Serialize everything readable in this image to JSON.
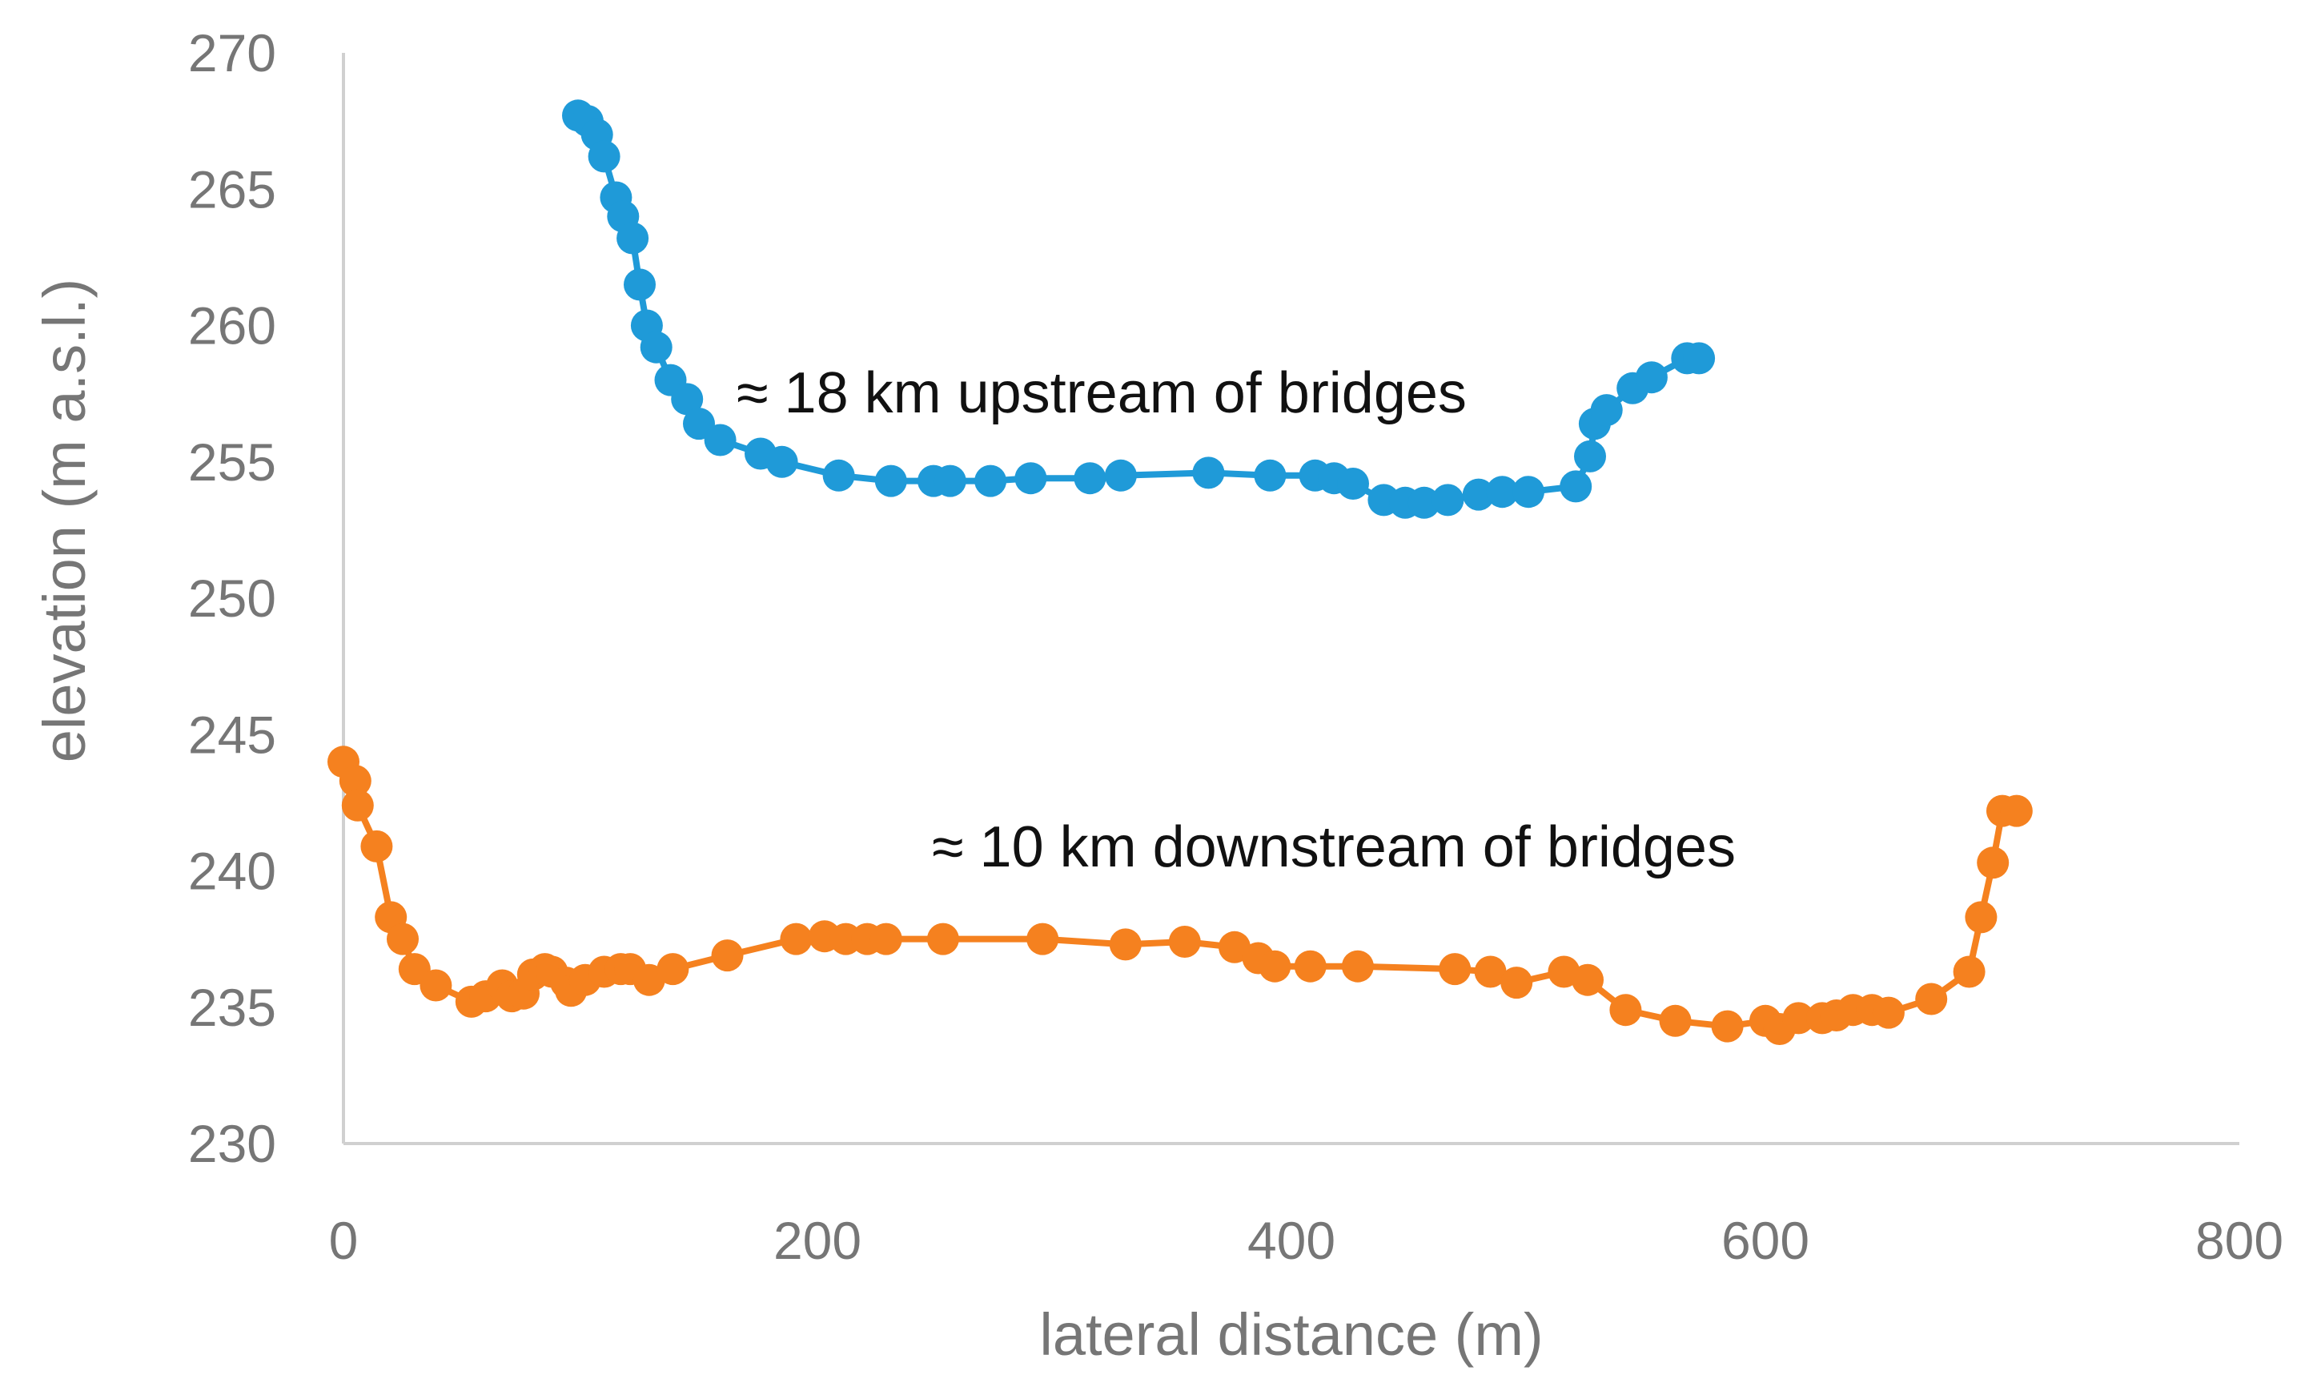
{
  "chart_data": {
    "type": "scatter",
    "title": "",
    "xlabel": "lateral distance (m)",
    "ylabel": "elevation (m a.s.l.)",
    "xlim": [
      0,
      800
    ],
    "ylim": [
      230,
      270
    ],
    "xticks": [
      0,
      200,
      400,
      600,
      800
    ],
    "yticks": [
      230,
      235,
      240,
      245,
      250,
      255,
      260,
      265,
      270
    ],
    "grid": false,
    "legend": "none",
    "annotations": [
      {
        "text": "≈ 18 km upstream of bridges"
      },
      {
        "text": "≈ 10 km downstream of bridges"
      }
    ],
    "series": [
      {
        "color": "#1f9ad8",
        "points": [
          [
            99,
            267.7
          ],
          [
            103,
            267.5
          ],
          [
            107,
            267.0
          ],
          [
            110,
            266.2
          ],
          [
            115,
            264.7
          ],
          [
            118,
            264.0
          ],
          [
            122,
            263.2
          ],
          [
            125,
            261.5
          ],
          [
            128,
            260.0
          ],
          [
            132,
            259.2
          ],
          [
            138,
            258.0
          ],
          [
            145,
            257.3
          ],
          [
            150,
            256.4
          ],
          [
            159,
            255.8
          ],
          [
            176,
            255.3
          ],
          [
            185,
            255.0
          ],
          [
            209,
            254.5
          ],
          [
            231,
            254.3
          ],
          [
            249,
            254.3
          ],
          [
            256,
            254.3
          ],
          [
            273,
            254.3
          ],
          [
            290,
            254.4
          ],
          [
            315,
            254.4
          ],
          [
            328,
            254.5
          ],
          [
            365,
            254.6
          ],
          [
            391,
            254.5
          ],
          [
            410,
            254.5
          ],
          [
            418,
            254.4
          ],
          [
            426,
            254.2
          ],
          [
            439,
            253.6
          ],
          [
            448,
            253.5
          ],
          [
            456,
            253.5
          ],
          [
            466,
            253.6
          ],
          [
            479,
            253.8
          ],
          [
            489,
            253.9
          ],
          [
            500,
            253.9
          ],
          [
            520,
            254.1
          ],
          [
            526,
            255.2
          ],
          [
            528,
            256.4
          ],
          [
            533,
            256.9
          ],
          [
            544,
            257.7
          ],
          [
            552,
            258.1
          ],
          [
            567,
            258.8
          ],
          [
            572,
            258.8
          ]
        ]
      },
      {
        "color": "#f5811f",
        "points": [
          [
            0,
            244.0
          ],
          [
            5,
            243.3
          ],
          [
            6,
            242.4
          ],
          [
            14,
            240.9
          ],
          [
            20,
            238.3
          ],
          [
            25,
            237.5
          ],
          [
            30,
            236.4
          ],
          [
            39,
            235.8
          ],
          [
            54,
            235.2
          ],
          [
            60,
            235.4
          ],
          [
            67,
            235.8
          ],
          [
            71,
            235.4
          ],
          [
            76,
            235.5
          ],
          [
            80,
            236.2
          ],
          [
            85,
            236.4
          ],
          [
            88,
            236.3
          ],
          [
            94,
            235.9
          ],
          [
            96,
            235.6
          ],
          [
            102,
            236.0
          ],
          [
            110,
            236.3
          ],
          [
            117,
            236.4
          ],
          [
            121,
            236.4
          ],
          [
            129,
            236.0
          ],
          [
            139,
            236.4
          ],
          [
            162,
            236.9
          ],
          [
            191,
            237.5
          ],
          [
            203,
            237.6
          ],
          [
            212,
            237.5
          ],
          [
            221,
            237.5
          ],
          [
            229,
            237.5
          ],
          [
            253,
            237.5
          ],
          [
            295,
            237.5
          ],
          [
            330,
            237.3
          ],
          [
            355,
            237.4
          ],
          [
            376,
            237.2
          ],
          [
            386,
            236.8
          ],
          [
            393,
            236.5
          ],
          [
            408,
            236.5
          ],
          [
            428,
            236.5
          ],
          [
            469,
            236.4
          ],
          [
            484,
            236.3
          ],
          [
            495,
            235.9
          ],
          [
            515,
            236.3
          ],
          [
            525,
            236.0
          ],
          [
            541,
            234.9
          ],
          [
            562,
            234.5
          ],
          [
            584,
            234.3
          ],
          [
            600,
            234.5
          ],
          [
            606,
            234.2
          ],
          [
            614,
            234.6
          ],
          [
            624,
            234.6
          ],
          [
            630,
            234.7
          ],
          [
            637,
            234.9
          ],
          [
            645,
            234.9
          ],
          [
            652,
            234.8
          ],
          [
            670,
            235.3
          ],
          [
            686,
            236.3
          ],
          [
            691,
            238.3
          ],
          [
            696,
            240.3
          ],
          [
            700,
            242.2
          ],
          [
            706,
            242.2
          ]
        ]
      }
    ]
  }
}
